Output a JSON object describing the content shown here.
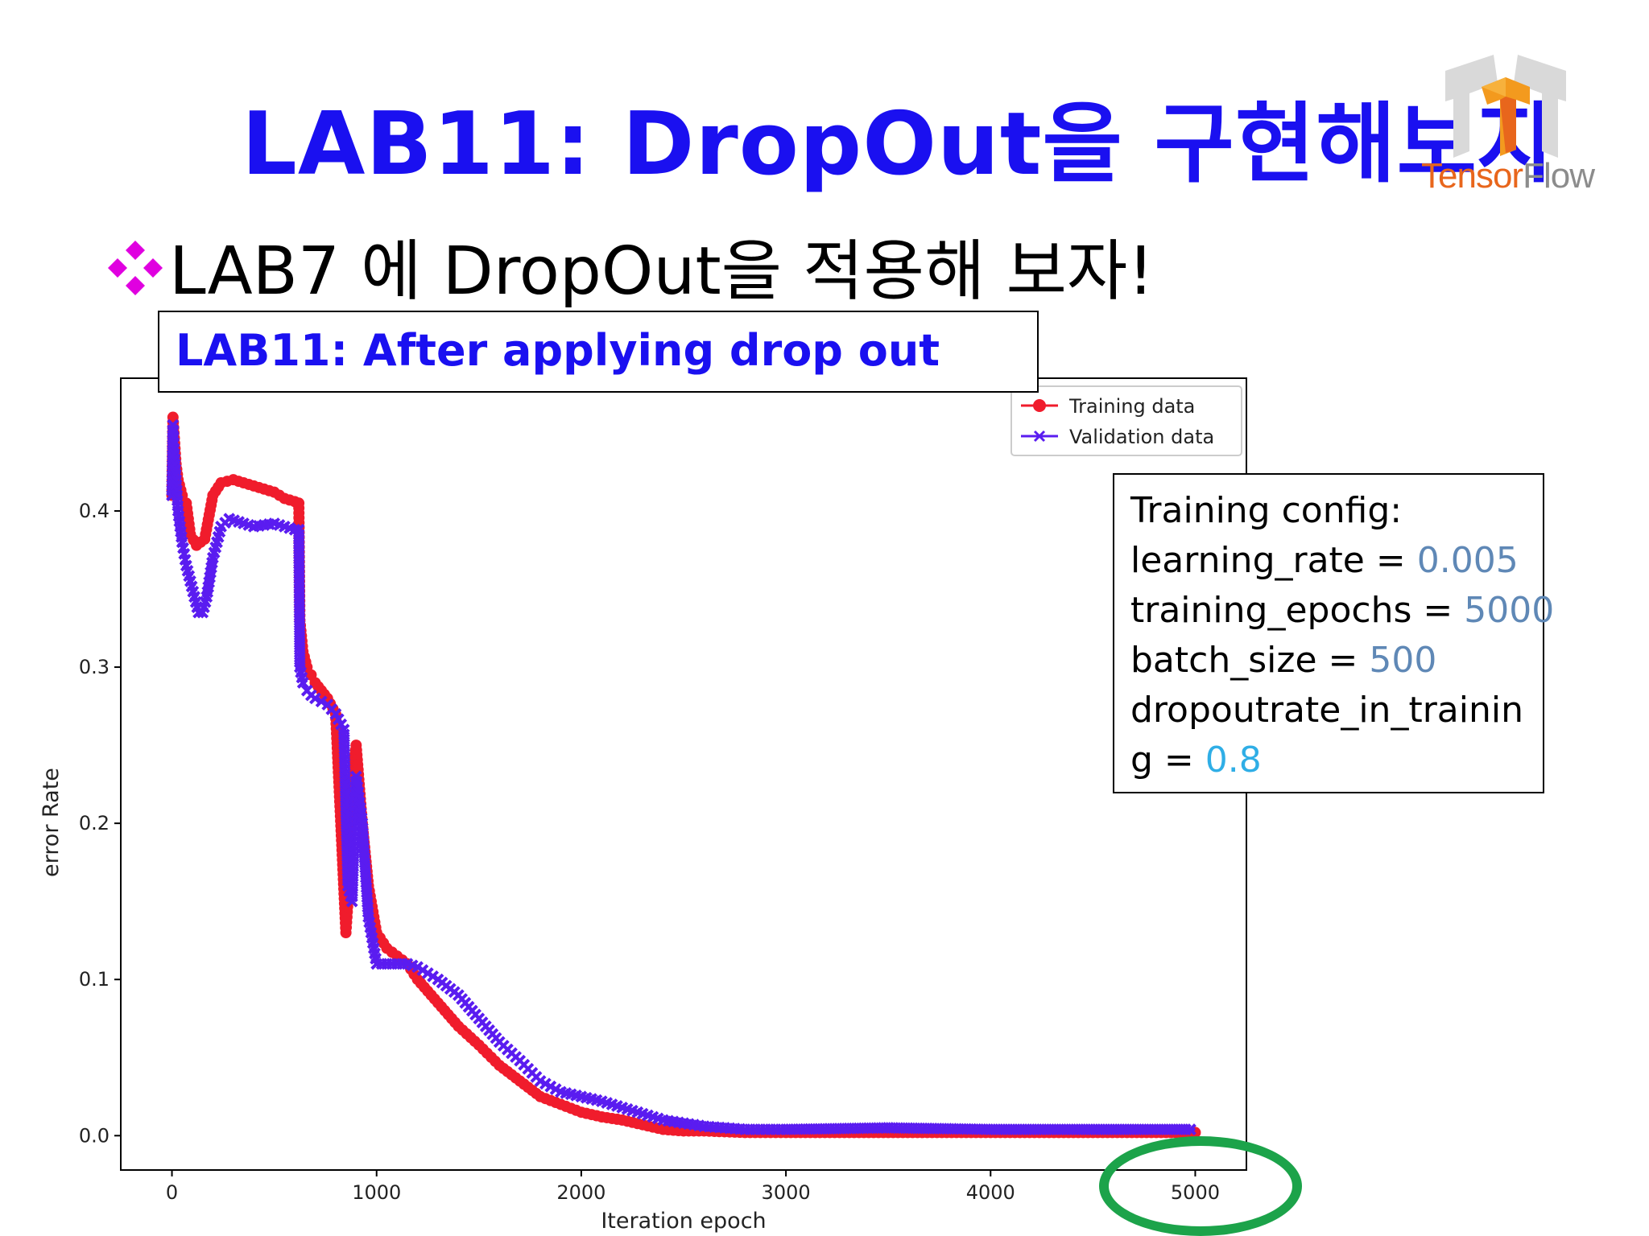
{
  "slide": {
    "title": "LAB11: DropOut을 구현해보자",
    "bullet": "LAB7 에 DropOut을 적용해 보자!",
    "chart_caption": "LAB11: After applying drop out",
    "logo": {
      "text_part1": "Tensor",
      "text_part2": "Flow"
    }
  },
  "config": {
    "heading": "Training config:",
    "lines": [
      {
        "key": "learning_rate = ",
        "value": "0.005"
      },
      {
        "key": "training_epochs = ",
        "value": "5000"
      },
      {
        "key": "batch_size = ",
        "value": "500"
      },
      {
        "key": "dropoutrate_in_trainin",
        "value": ""
      },
      {
        "key": "g = ",
        "value": "0.8"
      }
    ]
  },
  "colors": {
    "title": "#1a10f0",
    "training": "#f01c2c",
    "validation": "#5a1cf0",
    "highlight_ellipse": "#1ca34a",
    "config_value": "#5f88b6",
    "config_value_alt": "#2faee6"
  },
  "chart_data": {
    "type": "line",
    "xlabel": "Iteration epoch",
    "ylabel": "error Rate",
    "xlim": [
      -250,
      5250
    ],
    "ylim": [
      -0.022,
      0.485
    ],
    "xticks": [
      0,
      1000,
      2000,
      3000,
      4000,
      5000
    ],
    "xtick_labels": [
      "0",
      "1000",
      "2000",
      "3000",
      "4000",
      "5000"
    ],
    "yticks": [
      0.0,
      0.1,
      0.2,
      0.3,
      0.4
    ],
    "ytick_labels": [
      "0.0",
      "0.1",
      "0.2",
      "0.3",
      "0.4"
    ],
    "legend_position": "top-right",
    "series": [
      {
        "name": "Training data",
        "marker": "circle",
        "x": [
          0,
          5,
          10,
          20,
          30,
          50,
          70,
          90,
          120,
          160,
          200,
          240,
          300,
          350,
          400,
          450,
          500,
          550,
          600,
          620,
          625,
          640,
          660,
          680,
          700,
          730,
          760,
          800,
          850,
          870,
          880,
          900,
          930,
          960,
          1000,
          1050,
          1100,
          1150,
          1200,
          1300,
          1400,
          1500,
          1600,
          1700,
          1800,
          1900,
          2000,
          2100,
          2200,
          2300,
          2400,
          2500,
          2600,
          2800,
          3000,
          3500,
          4000,
          4500,
          5000
        ],
        "y": [
          0.41,
          0.46,
          0.45,
          0.43,
          0.42,
          0.41,
          0.405,
          0.385,
          0.378,
          0.382,
          0.41,
          0.418,
          0.42,
          0.418,
          0.416,
          0.414,
          0.412,
          0.408,
          0.406,
          0.405,
          0.33,
          0.31,
          0.3,
          0.295,
          0.29,
          0.285,
          0.28,
          0.27,
          0.13,
          0.17,
          0.23,
          0.25,
          0.2,
          0.16,
          0.13,
          0.12,
          0.115,
          0.11,
          0.1,
          0.085,
          0.07,
          0.058,
          0.045,
          0.035,
          0.025,
          0.02,
          0.015,
          0.012,
          0.01,
          0.007,
          0.004,
          0.003,
          0.003,
          0.002,
          0.002,
          0.002,
          0.002,
          0.002,
          0.002
        ]
      },
      {
        "name": "Validation data",
        "marker": "x",
        "x": [
          0,
          5,
          10,
          20,
          30,
          50,
          70,
          90,
          110,
          130,
          150,
          170,
          200,
          240,
          280,
          350,
          400,
          450,
          500,
          550,
          600,
          620,
          625,
          640,
          660,
          680,
          700,
          730,
          760,
          800,
          840,
          860,
          880,
          900,
          930,
          960,
          1000,
          1050,
          1100,
          1150,
          1200,
          1300,
          1400,
          1500,
          1600,
          1700,
          1800,
          1900,
          2000,
          2100,
          2200,
          2300,
          2400,
          2500,
          2600,
          2800,
          3000,
          3500,
          4000,
          4500,
          5000
        ],
        "y": [
          0.41,
          0.455,
          0.44,
          0.42,
          0.4,
          0.38,
          0.365,
          0.355,
          0.345,
          0.335,
          0.335,
          0.345,
          0.37,
          0.39,
          0.395,
          0.392,
          0.39,
          0.391,
          0.392,
          0.39,
          0.388,
          0.388,
          0.3,
          0.29,
          0.285,
          0.282,
          0.28,
          0.278,
          0.276,
          0.27,
          0.26,
          0.16,
          0.15,
          0.23,
          0.2,
          0.14,
          0.11,
          0.11,
          0.11,
          0.11,
          0.108,
          0.1,
          0.09,
          0.075,
          0.06,
          0.048,
          0.035,
          0.028,
          0.025,
          0.022,
          0.018,
          0.014,
          0.01,
          0.008,
          0.006,
          0.004,
          0.004,
          0.005,
          0.004,
          0.004,
          0.004
        ]
      }
    ]
  }
}
